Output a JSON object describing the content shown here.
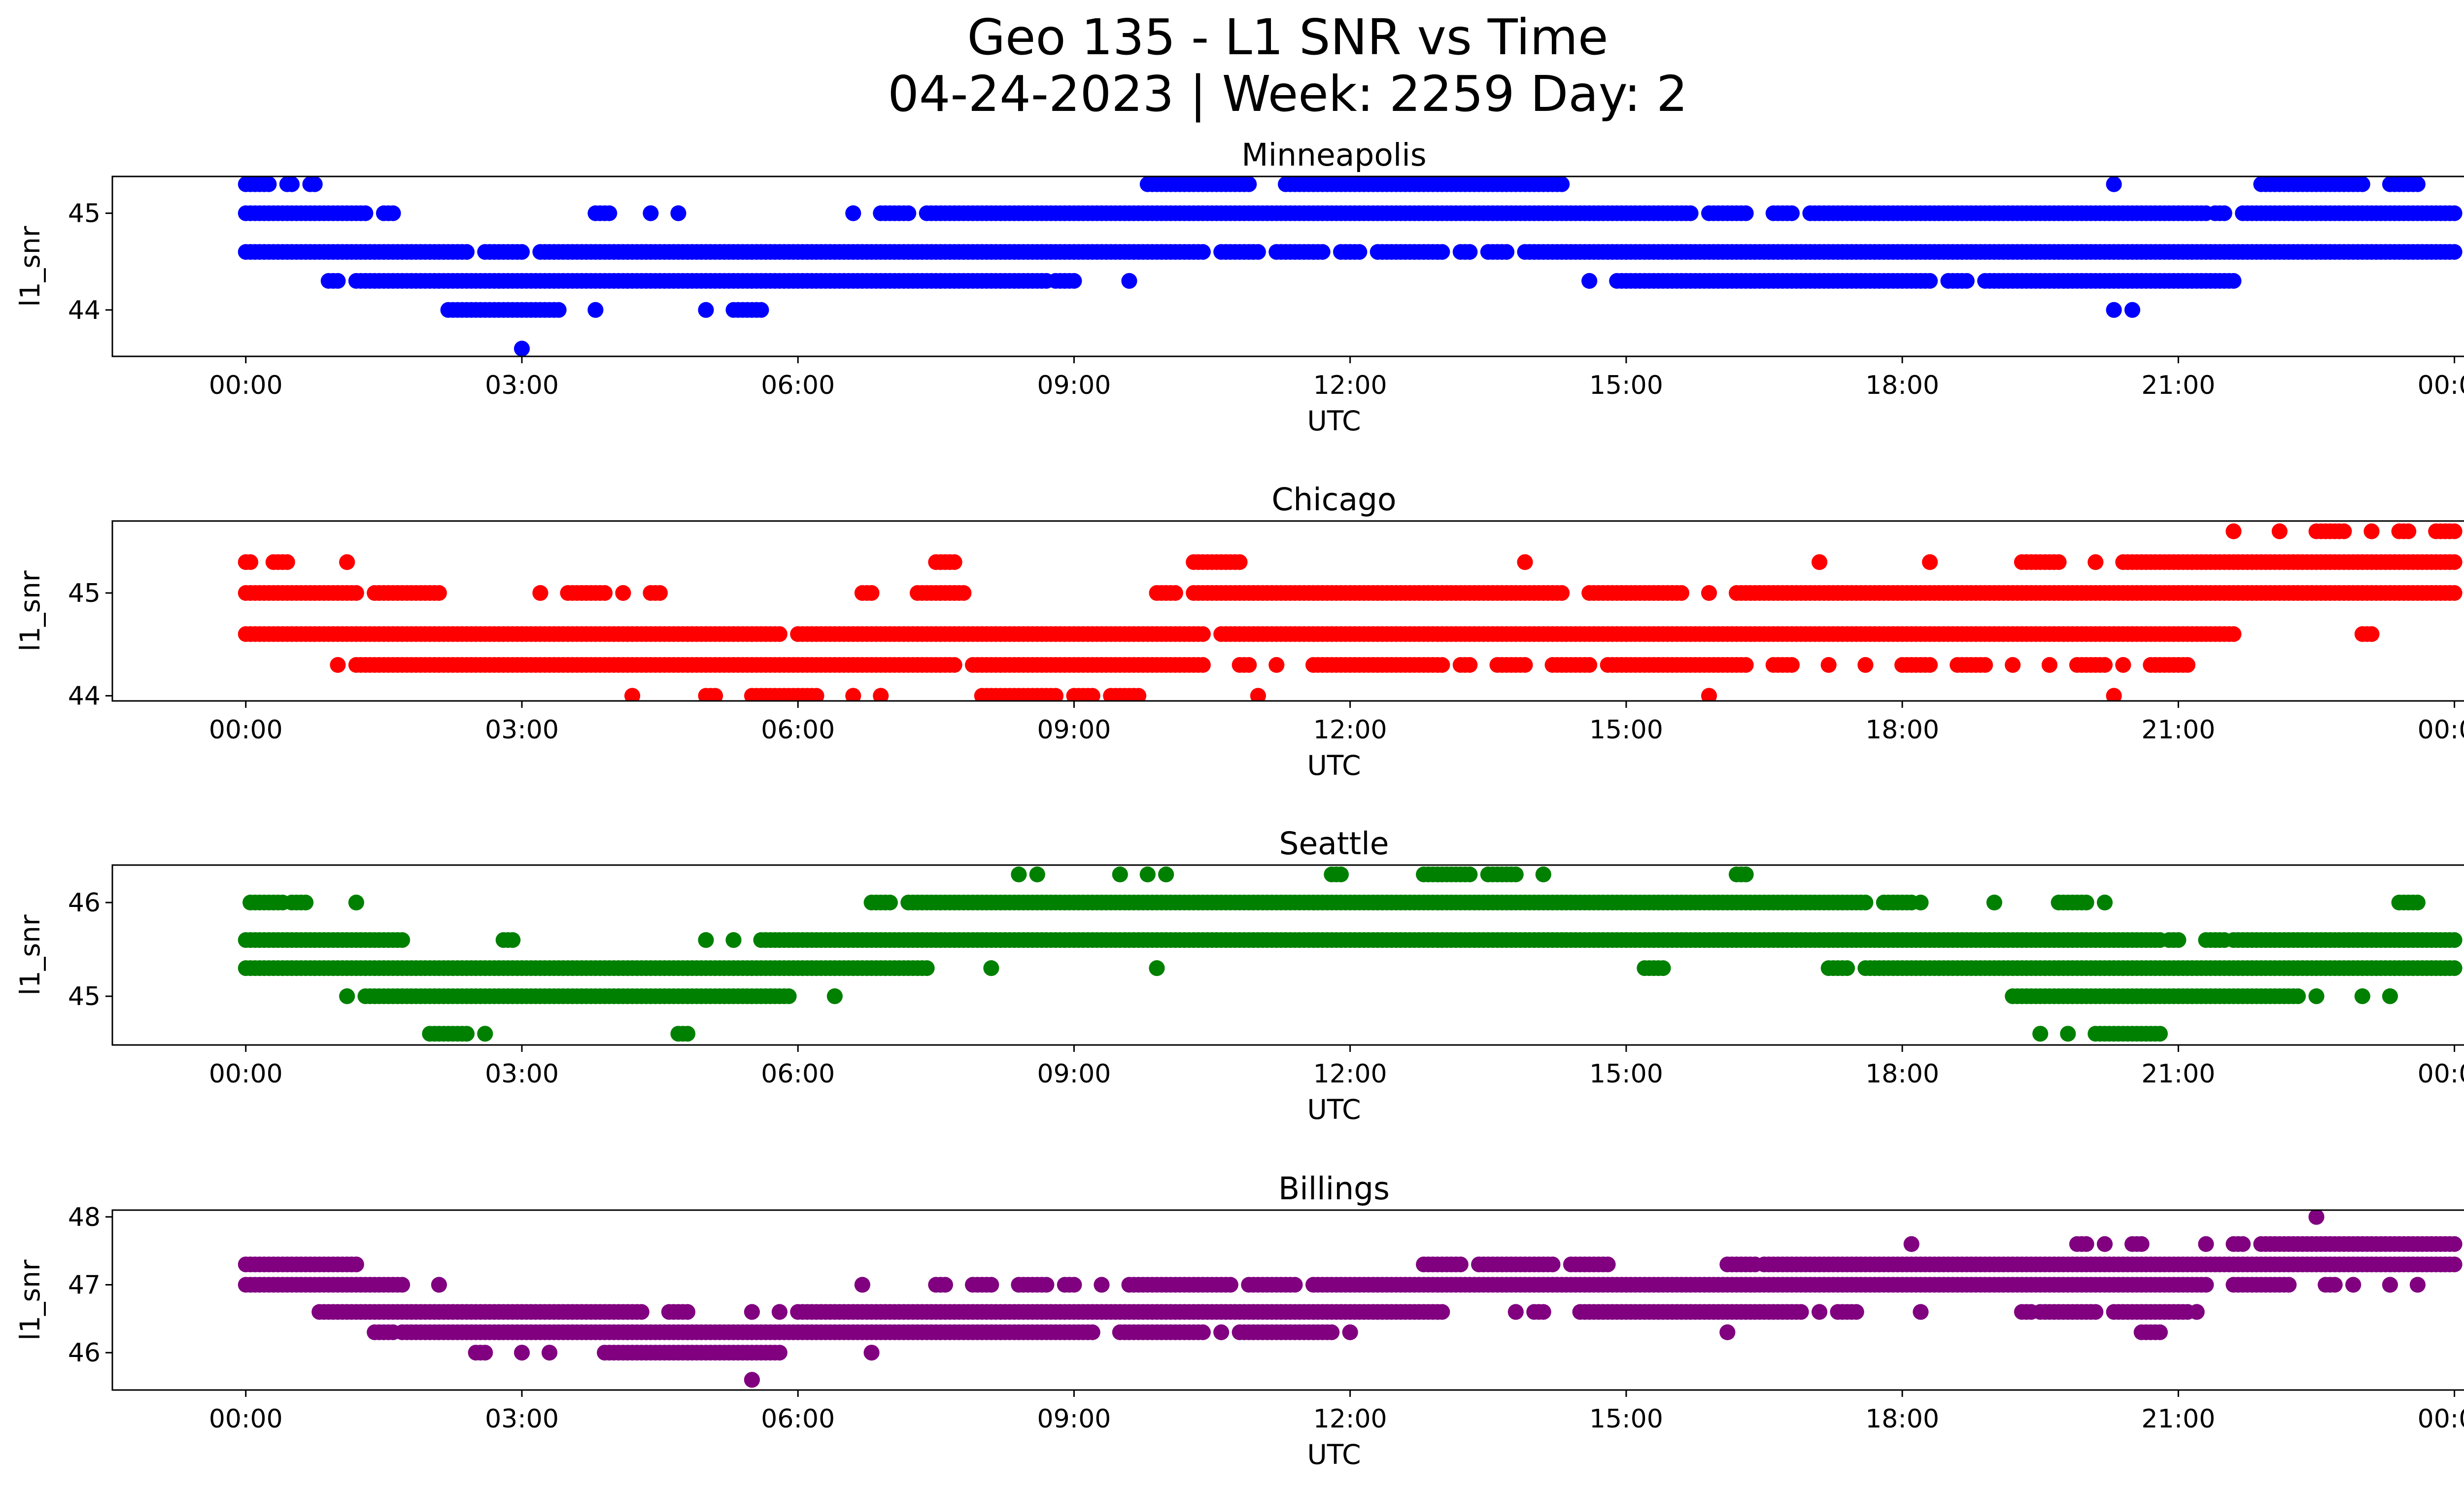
{
  "title_line1": "Geo 135 - L1 SNR vs Time",
  "title_line2": "04-24-2023 | Week: 2259 Day: 2",
  "chart_data": [
    {
      "type": "scatter",
      "title": "Minneapolis",
      "xlabel": "UTC",
      "ylabel": "l1_snr",
      "color": "#0000ff",
      "xlim_hours": [
        -1.45,
        25.1
      ],
      "xticks": [
        "00:00",
        "03:00",
        "06:00",
        "09:00",
        "12:00",
        "15:00",
        "18:00",
        "21:00",
        "00:00"
      ],
      "ylim": [
        43.52,
        45.38
      ],
      "yticks": [
        44,
        45
      ],
      "levels": [
        {
          "y": 45.3,
          "segments": [
            [
              0.0,
              0.25
            ],
            [
              0.45,
              0.5
            ],
            [
              0.7,
              0.75
            ],
            [
              9.8,
              10.9
            ],
            [
              11.3,
              14.3
            ],
            [
              20.3,
              20.3
            ],
            [
              21.9,
              23.0
            ],
            [
              23.3,
              23.6
            ]
          ]
        },
        {
          "y": 45.0,
          "segments": [
            [
              0.0,
              1.3
            ],
            [
              1.5,
              1.6
            ],
            [
              3.8,
              3.95
            ],
            [
              4.4,
              4.4
            ],
            [
              4.7,
              4.7
            ],
            [
              6.6,
              6.6
            ],
            [
              6.9,
              7.2
            ],
            [
              7.4,
              15.7
            ],
            [
              15.9,
              16.3
            ],
            [
              16.6,
              16.8
            ],
            [
              17.0,
              21.3
            ],
            [
              21.4,
              21.5
            ],
            [
              21.7,
              24.0
            ]
          ]
        },
        {
          "y": 44.6,
          "segments": [
            [
              0.0,
              2.4
            ],
            [
              2.6,
              3.0
            ],
            [
              3.2,
              10.4
            ],
            [
              10.6,
              11.0
            ],
            [
              11.2,
              11.7
            ],
            [
              11.9,
              12.1
            ],
            [
              12.3,
              13.0
            ],
            [
              13.2,
              13.3
            ],
            [
              13.5,
              13.7
            ],
            [
              13.9,
              24.0
            ]
          ]
        },
        {
          "y": 44.3,
          "segments": [
            [
              0.9,
              1.0
            ],
            [
              1.2,
              8.7
            ],
            [
              8.8,
              9.0
            ],
            [
              9.6,
              9.6
            ],
            [
              14.6,
              14.6
            ],
            [
              14.9,
              18.3
            ],
            [
              18.5,
              18.7
            ],
            [
              18.9,
              21.6
            ]
          ]
        },
        {
          "y": 44.0,
          "segments": [
            [
              2.2,
              3.4
            ],
            [
              3.8,
              3.8
            ],
            [
              5.0,
              5.0
            ],
            [
              5.3,
              5.6
            ],
            [
              20.3,
              20.3
            ],
            [
              20.5,
              20.5
            ]
          ]
        },
        {
          "y": 43.6,
          "segments": [
            [
              3.0,
              3.0
            ]
          ]
        }
      ]
    },
    {
      "type": "scatter",
      "title": "Chicago",
      "xlabel": "UTC",
      "ylabel": "l1_snr",
      "color": "#ff0000",
      "xlim_hours": [
        -1.45,
        25.1
      ],
      "xticks": [
        "00:00",
        "03:00",
        "06:00",
        "09:00",
        "12:00",
        "15:00",
        "18:00",
        "21:00",
        "00:00"
      ],
      "ylim": [
        43.95,
        45.7
      ],
      "yticks": [
        44,
        45
      ],
      "levels": [
        {
          "y": 45.6,
          "segments": [
            [
              21.6,
              21.6
            ],
            [
              22.1,
              22.1
            ],
            [
              22.5,
              22.8
            ],
            [
              23.1,
              23.1
            ],
            [
              23.4,
              23.5
            ],
            [
              23.8,
              24.0
            ]
          ]
        },
        {
          "y": 45.3,
          "segments": [
            [
              0.0,
              0.05
            ],
            [
              0.3,
              0.45
            ],
            [
              1.1,
              1.1
            ],
            [
              7.5,
              7.7
            ],
            [
              10.3,
              10.8
            ],
            [
              13.9,
              13.9
            ],
            [
              17.1,
              17.1
            ],
            [
              18.3,
              18.3
            ],
            [
              19.3,
              19.7
            ],
            [
              20.1,
              20.1
            ],
            [
              20.4,
              24.0
            ]
          ]
        },
        {
          "y": 45.0,
          "segments": [
            [
              0.0,
              1.2
            ],
            [
              1.4,
              2.1
            ],
            [
              3.2,
              3.2
            ],
            [
              3.5,
              3.9
            ],
            [
              4.1,
              4.1
            ],
            [
              4.4,
              4.5
            ],
            [
              6.7,
              6.8
            ],
            [
              7.3,
              7.8
            ],
            [
              9.9,
              10.1
            ],
            [
              10.3,
              14.3
            ],
            [
              14.6,
              15.6
            ],
            [
              15.9,
              15.9
            ],
            [
              16.2,
              24.0
            ]
          ]
        },
        {
          "y": 44.6,
          "segments": [
            [
              0.0,
              5.8
            ],
            [
              6.0,
              10.4
            ],
            [
              10.6,
              21.6
            ],
            [
              23.0,
              23.1
            ]
          ]
        },
        {
          "y": 44.3,
          "segments": [
            [
              1.0,
              1.0
            ],
            [
              1.2,
              7.7
            ],
            [
              7.9,
              10.4
            ],
            [
              10.8,
              10.9
            ],
            [
              11.2,
              11.2
            ],
            [
              11.6,
              13.0
            ],
            [
              13.2,
              13.3
            ],
            [
              13.6,
              13.9
            ],
            [
              14.2,
              14.6
            ],
            [
              14.8,
              16.3
            ],
            [
              16.6,
              16.8
            ],
            [
              17.2,
              17.2
            ],
            [
              17.6,
              17.6
            ],
            [
              18.0,
              18.3
            ],
            [
              18.6,
              18.9
            ],
            [
              19.2,
              19.2
            ],
            [
              19.6,
              19.6
            ],
            [
              19.9,
              20.2
            ],
            [
              20.4,
              20.4
            ],
            [
              20.7,
              21.1
            ]
          ]
        },
        {
          "y": 44.0,
          "segments": [
            [
              4.2,
              4.2
            ],
            [
              5.0,
              5.1
            ],
            [
              5.5,
              6.2
            ],
            [
              6.6,
              6.6
            ],
            [
              6.9,
              6.9
            ],
            [
              8.0,
              8.8
            ],
            [
              9.0,
              9.2
            ],
            [
              9.4,
              9.7
            ],
            [
              11.0,
              11.0
            ],
            [
              15.9,
              15.9
            ],
            [
              20.3,
              20.3
            ]
          ]
        }
      ]
    },
    {
      "type": "scatter",
      "title": "Seattle",
      "xlabel": "UTC",
      "ylabel": "l1_snr",
      "color": "#008000",
      "xlim_hours": [
        -1.45,
        25.1
      ],
      "xticks": [
        "00:00",
        "03:00",
        "06:00",
        "09:00",
        "12:00",
        "15:00",
        "18:00",
        "21:00",
        "00:00"
      ],
      "ylim": [
        44.48,
        46.4
      ],
      "yticks": [
        45,
        46
      ],
      "levels": [
        {
          "y": 46.3,
          "segments": [
            [
              8.4,
              8.4
            ],
            [
              8.6,
              8.6
            ],
            [
              9.5,
              9.5
            ],
            [
              9.8,
              9.8
            ],
            [
              10.0,
              10.0
            ],
            [
              11.8,
              11.9
            ],
            [
              12.8,
              13.3
            ],
            [
              13.5,
              13.8
            ],
            [
              14.1,
              14.1
            ],
            [
              16.2,
              16.3
            ]
          ]
        },
        {
          "y": 46.0,
          "segments": [
            [
              0.05,
              0.4
            ],
            [
              0.5,
              0.65
            ],
            [
              1.2,
              1.2
            ],
            [
              6.8,
              7.0
            ],
            [
              7.2,
              17.6
            ],
            [
              17.8,
              18.1
            ],
            [
              18.2,
              18.2
            ],
            [
              19.0,
              19.0
            ],
            [
              19.7,
              20.0
            ],
            [
              20.2,
              20.2
            ],
            [
              23.4,
              23.6
            ]
          ]
        },
        {
          "y": 45.6,
          "segments": [
            [
              0.0,
              1.7
            ],
            [
              2.8,
              2.9
            ],
            [
              5.0,
              5.0
            ],
            [
              5.3,
              5.3
            ],
            [
              5.6,
              20.8
            ],
            [
              20.9,
              21.0
            ],
            [
              21.3,
              21.5
            ],
            [
              21.6,
              24.0
            ]
          ]
        },
        {
          "y": 45.3,
          "segments": [
            [
              0.0,
              7.4
            ],
            [
              8.1,
              8.1
            ],
            [
              9.9,
              9.9
            ],
            [
              15.2,
              15.4
            ],
            [
              17.2,
              17.4
            ],
            [
              17.6,
              24.0
            ]
          ]
        },
        {
          "y": 45.0,
          "segments": [
            [
              1.1,
              1.1
            ],
            [
              1.3,
              5.9
            ],
            [
              6.4,
              6.4
            ],
            [
              19.2,
              22.3
            ],
            [
              22.5,
              22.5
            ],
            [
              23.0,
              23.0
            ],
            [
              23.3,
              23.3
            ]
          ]
        },
        {
          "y": 44.6,
          "segments": [
            [
              2.0,
              2.4
            ],
            [
              2.6,
              2.6
            ],
            [
              4.7,
              4.8
            ],
            [
              19.5,
              19.5
            ],
            [
              19.8,
              19.8
            ],
            [
              20.1,
              20.8
            ]
          ]
        }
      ]
    },
    {
      "type": "scatter",
      "title": "Billings",
      "xlabel": "UTC",
      "ylabel": "l1_snr",
      "color": "#800080",
      "xlim_hours": [
        -1.45,
        25.1
      ],
      "xticks": [
        "00:00",
        "03:00",
        "06:00",
        "09:00",
        "12:00",
        "15:00",
        "18:00",
        "21:00",
        "00:00"
      ],
      "ylim": [
        45.45,
        48.1
      ],
      "yticks": [
        46,
        47,
        48
      ],
      "levels": [
        {
          "y": 48.0,
          "segments": [
            [
              22.5,
              22.5
            ]
          ]
        },
        {
          "y": 47.6,
          "segments": [
            [
              18.1,
              18.1
            ],
            [
              19.9,
              20.0
            ],
            [
              20.2,
              20.2
            ],
            [
              20.5,
              20.6
            ],
            [
              21.3,
              21.3
            ],
            [
              21.6,
              21.7
            ],
            [
              21.9,
              24.0
            ]
          ]
        },
        {
          "y": 47.3,
          "segments": [
            [
              0.0,
              1.2
            ],
            [
              12.8,
              13.2
            ],
            [
              13.4,
              14.2
            ],
            [
              14.4,
              14.8
            ],
            [
              16.1,
              16.4
            ],
            [
              16.5,
              24.0
            ]
          ]
        },
        {
          "y": 47.0,
          "segments": [
            [
              0.0,
              1.7
            ],
            [
              2.1,
              2.1
            ],
            [
              6.7,
              6.7
            ],
            [
              7.5,
              7.6
            ],
            [
              7.9,
              8.1
            ],
            [
              8.4,
              8.7
            ],
            [
              8.9,
              9.0
            ],
            [
              9.3,
              9.3
            ],
            [
              9.6,
              10.7
            ],
            [
              10.9,
              11.4
            ],
            [
              11.6,
              21.3
            ],
            [
              21.6,
              22.2
            ],
            [
              22.6,
              22.7
            ],
            [
              22.9,
              22.9
            ],
            [
              23.3,
              23.3
            ],
            [
              23.6,
              23.6
            ]
          ]
        },
        {
          "y": 46.6,
          "segments": [
            [
              0.8,
              4.3
            ],
            [
              4.6,
              4.8
            ],
            [
              5.5,
              5.5
            ],
            [
              5.8,
              5.8
            ],
            [
              6.0,
              13.0
            ],
            [
              13.8,
              13.8
            ],
            [
              14.0,
              14.1
            ],
            [
              14.5,
              16.9
            ],
            [
              17.1,
              17.1
            ],
            [
              17.3,
              17.5
            ],
            [
              18.2,
              18.2
            ],
            [
              19.3,
              19.4
            ],
            [
              19.5,
              20.1
            ],
            [
              20.3,
              21.1
            ],
            [
              21.2,
              21.2
            ]
          ]
        },
        {
          "y": 46.3,
          "segments": [
            [
              1.4,
              1.6
            ],
            [
              1.7,
              9.2
            ],
            [
              9.5,
              10.4
            ],
            [
              10.6,
              10.6
            ],
            [
              10.8,
              11.8
            ],
            [
              12.0,
              12.0
            ],
            [
              16.1,
              16.1
            ],
            [
              20.6,
              20.8
            ]
          ]
        },
        {
          "y": 46.0,
          "segments": [
            [
              2.5,
              2.6
            ],
            [
              3.0,
              3.0
            ],
            [
              3.3,
              3.3
            ],
            [
              3.9,
              5.8
            ],
            [
              6.8,
              6.8
            ]
          ]
        },
        {
          "y": 45.6,
          "segments": [
            [
              5.5,
              5.5
            ]
          ]
        }
      ]
    }
  ]
}
